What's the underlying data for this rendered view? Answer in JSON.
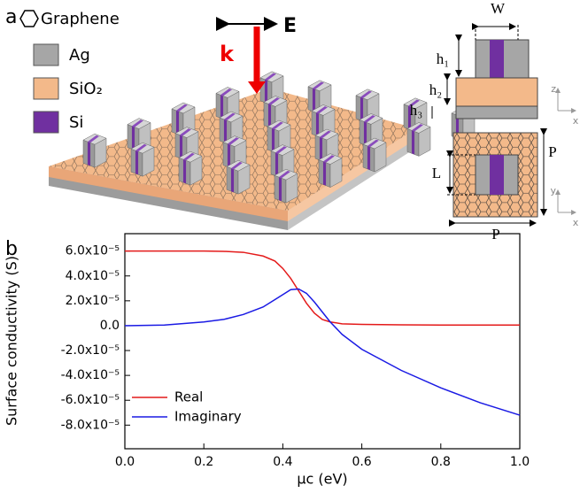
{
  "panel_a": {
    "label": "a",
    "legend": [
      "Graphene",
      "Ag",
      "SiO₂",
      "Si"
    ],
    "k": "k",
    "E": "E",
    "dimensions": {
      "W": "W",
      "h1": "h₁",
      "h2": "h₂",
      "h3": "h₃",
      "L": "L",
      "P_side": "P",
      "P_bottom": "P"
    },
    "axes_side": [
      "z",
      "x"
    ],
    "axes_top": [
      "y",
      "x"
    ]
  },
  "panel_b_label": "b",
  "chart_data": {
    "type": "line",
    "xlabel": "μc (eV)",
    "ylabel": "Surface conductivity (S)",
    "x": [
      0,
      0.1,
      0.2,
      0.25,
      0.3,
      0.35,
      0.38,
      0.4,
      0.42,
      0.44,
      0.46,
      0.48,
      0.5,
      0.52,
      0.55,
      0.6,
      0.7,
      0.8,
      0.9,
      1.0
    ],
    "series": [
      {
        "name": "Real",
        "color": "#e41a1a",
        "values": [
          6e-05,
          6e-05,
          6e-05,
          5.98e-05,
          5.9e-05,
          5.6e-05,
          5.2e-05,
          4.6e-05,
          3.8e-05,
          2.8e-05,
          1.8e-05,
          1e-05,
          5e-06,
          3e-06,
          1.5e-06,
          1e-06,
          7e-07,
          5e-07,
          5e-07,
          5e-07
        ]
      },
      {
        "name": "Imaginary",
        "color": "#1a1ae4",
        "values": [
          0,
          5e-07,
          3e-06,
          5e-06,
          9e-06,
          1.5e-05,
          2.1e-05,
          2.5e-05,
          2.9e-05,
          2.95e-05,
          2.6e-05,
          1.9e-05,
          1.1e-05,
          3e-06,
          -7e-06,
          -1.9e-05,
          -3.6e-05,
          -5e-05,
          -6.2e-05,
          -7.2e-05
        ]
      }
    ],
    "xlim": [
      0,
      1
    ],
    "ylim": [
      -9.9e-05,
      7.4e-05
    ],
    "xticks": [
      {
        "value": 0,
        "label": "0.0"
      },
      0.2,
      0.4,
      0.6,
      0.8,
      {
        "value": 1,
        "label": "1.0"
      }
    ],
    "yticks": [
      {
        "value": -8e-05,
        "label": "-8.0x10⁻⁵"
      },
      {
        "value": -6e-05,
        "label": "-6.0x10⁻⁵"
      },
      {
        "value": -4e-05,
        "label": "-4.0x10⁻⁵"
      },
      {
        "value": -2e-05,
        "label": "-2.0x10⁻⁵"
      },
      {
        "value": 0,
        "label": "0.0"
      },
      {
        "value": 2e-05,
        "label": "2.0x10⁻⁵"
      },
      {
        "value": 4e-05,
        "label": "4.0x10⁻⁵"
      },
      {
        "value": 6e-05,
        "label": "6.0x10⁻⁵"
      }
    ],
    "legend": "lower left",
    "grid": false
  }
}
